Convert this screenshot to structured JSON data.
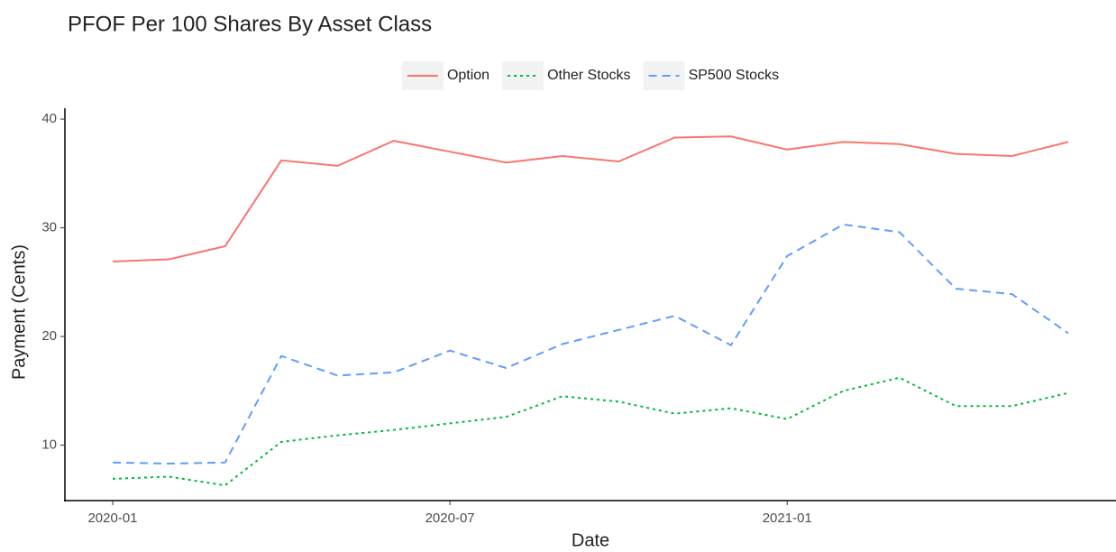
{
  "chart_data": {
    "type": "line",
    "title": "PFOF Per 100 Shares By Asset Class",
    "x_label": "Date",
    "y_label": "Payment (Cents)",
    "x": [
      "2020-01",
      "2020-02",
      "2020-03",
      "2020-04",
      "2020-05",
      "2020-06",
      "2020-07",
      "2020-08",
      "2020-09",
      "2020-10",
      "2020-11",
      "2020-12",
      "2021-01",
      "2021-02",
      "2021-03",
      "2021-04",
      "2021-05",
      "2021-06"
    ],
    "xticks": [
      "2020-01",
      "2020-07",
      "2021-01"
    ],
    "ylim": [
      4.9,
      41.0
    ],
    "yticks": [
      10,
      20,
      30,
      40
    ],
    "legend": "top",
    "grid": false,
    "series": [
      {
        "name": "Option",
        "color": "#F8766D",
        "linetype": "solid",
        "values": [
          26.9,
          27.1,
          28.3,
          36.2,
          35.7,
          38.0,
          37.0,
          36.0,
          36.6,
          36.1,
          38.3,
          38.4,
          37.2,
          37.9,
          37.7,
          36.8,
          36.6,
          37.9
        ]
      },
      {
        "name": "Other Stocks",
        "color": "#00BA38",
        "linetype": "dotted",
        "values": [
          6.9,
          7.1,
          6.3,
          10.3,
          10.9,
          11.4,
          12.0,
          12.6,
          14.5,
          14.0,
          12.9,
          13.4,
          12.4,
          15.0,
          16.2,
          13.6,
          13.6,
          14.8
        ]
      },
      {
        "name": "SP500 Stocks",
        "color": "#619CFF",
        "linetype": "dashed",
        "values": [
          8.4,
          8.3,
          8.4,
          18.2,
          16.4,
          16.7,
          18.7,
          17.1,
          19.3,
          20.6,
          21.9,
          19.2,
          27.4,
          30.3,
          29.6,
          24.4,
          23.9,
          20.3
        ]
      }
    ]
  }
}
